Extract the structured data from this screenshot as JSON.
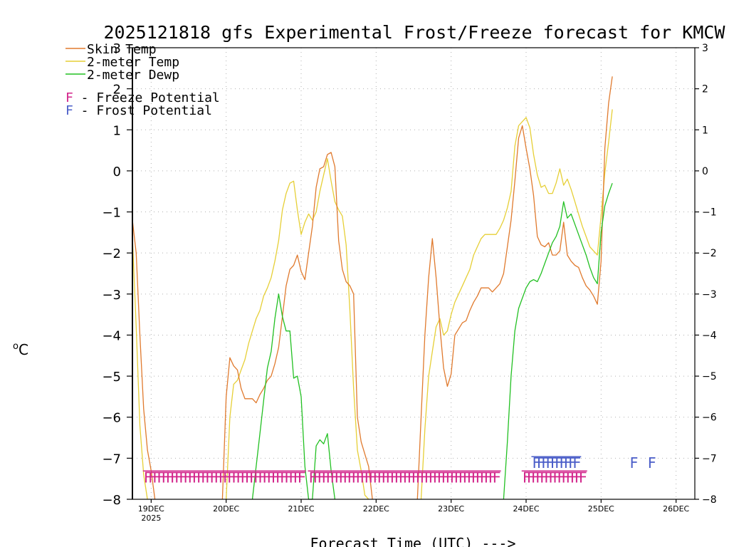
{
  "chart_data": {
    "type": "line",
    "title": "2025121818 gfs Experimental Frost/Freeze forecast for KMCW",
    "xlabel": "Forecast Time (UTC) --->",
    "ylabel": "°C",
    "ylabel_deg": "o",
    "ylabel_unit": "C",
    "ylim": [
      -8,
      3
    ],
    "xlim": [
      -0.25,
      7.25
    ],
    "y_ticks": [
      -8,
      -7,
      -6,
      -5,
      -4,
      -3,
      -2,
      -1,
      0,
      1,
      2,
      3
    ],
    "x_ticks": [
      {
        "pos": 0,
        "label": "19DEC",
        "sublabel": "2025"
      },
      {
        "pos": 1,
        "label": "20DEC"
      },
      {
        "pos": 2,
        "label": "21DEC"
      },
      {
        "pos": 3,
        "label": "22DEC"
      },
      {
        "pos": 4,
        "label": "23DEC"
      },
      {
        "pos": 5,
        "label": "24DEC"
      },
      {
        "pos": 6,
        "label": "25DEC"
      },
      {
        "pos": 7,
        "label": "26DEC"
      }
    ],
    "grid": true,
    "colors": {
      "skin": "#e07a2e",
      "t2m": "#e6cf36",
      "dewp": "#22c022",
      "freeze": "#d2238a",
      "frost": "#4a5dc8"
    },
    "legend": {
      "skin": "Skin Temp",
      "t2m": "2-meter Temp",
      "dewp": "2-meter Dewp",
      "freeze_letter": "F",
      "freeze_text": " - Freeze Potential",
      "frost_letter": "F",
      "frost_text": " - Frost Potential"
    },
    "series": [
      {
        "name": "Skin Temp",
        "key": "skin",
        "points": [
          [
            -0.25,
            -1.2
          ],
          [
            -0.2,
            -2.0
          ],
          [
            -0.15,
            -4.0
          ],
          [
            -0.1,
            -5.8
          ],
          [
            -0.05,
            -6.8
          ],
          [
            0.0,
            -7.3
          ],
          [
            0.05,
            -8.0
          ],
          [
            0.95,
            -8.0
          ],
          [
            1.0,
            -5.5
          ],
          [
            1.05,
            -4.55
          ],
          [
            1.1,
            -4.75
          ],
          [
            1.15,
            -4.85
          ],
          [
            1.2,
            -5.3
          ],
          [
            1.25,
            -5.55
          ],
          [
            1.35,
            -5.55
          ],
          [
            1.4,
            -5.65
          ],
          [
            1.45,
            -5.45
          ],
          [
            1.5,
            -5.3
          ],
          [
            1.55,
            -5.1
          ],
          [
            1.6,
            -5.0
          ],
          [
            1.65,
            -4.7
          ],
          [
            1.7,
            -4.3
          ],
          [
            1.75,
            -3.55
          ],
          [
            1.8,
            -2.8
          ],
          [
            1.85,
            -2.4
          ],
          [
            1.9,
            -2.3
          ],
          [
            1.95,
            -2.05
          ],
          [
            2.0,
            -2.45
          ],
          [
            2.05,
            -2.65
          ],
          [
            2.1,
            -2.0
          ],
          [
            2.15,
            -1.35
          ],
          [
            2.2,
            -0.4
          ],
          [
            2.25,
            0.05
          ],
          [
            2.3,
            0.1
          ],
          [
            2.35,
            0.4
          ],
          [
            2.4,
            0.45
          ],
          [
            2.45,
            0.1
          ],
          [
            2.5,
            -1.7
          ],
          [
            2.55,
            -2.4
          ],
          [
            2.6,
            -2.7
          ],
          [
            2.65,
            -2.8
          ],
          [
            2.7,
            -3.0
          ],
          [
            2.75,
            -6.0
          ],
          [
            2.8,
            -6.6
          ],
          [
            2.85,
            -6.9
          ],
          [
            2.9,
            -7.2
          ],
          [
            2.95,
            -8.0
          ],
          [
            3.55,
            -8.0
          ],
          [
            3.6,
            -6.0
          ],
          [
            3.65,
            -4.0
          ],
          [
            3.7,
            -2.6
          ],
          [
            3.75,
            -1.65
          ],
          [
            3.8,
            -2.6
          ],
          [
            3.85,
            -3.8
          ],
          [
            3.9,
            -4.8
          ],
          [
            3.95,
            -5.25
          ],
          [
            4.0,
            -4.95
          ],
          [
            4.05,
            -4.0
          ],
          [
            4.1,
            -3.85
          ],
          [
            4.15,
            -3.7
          ],
          [
            4.2,
            -3.65
          ],
          [
            4.25,
            -3.4
          ],
          [
            4.3,
            -3.2
          ],
          [
            4.35,
            -3.05
          ],
          [
            4.4,
            -2.85
          ],
          [
            4.45,
            -2.85
          ],
          [
            4.5,
            -2.85
          ],
          [
            4.55,
            -2.95
          ],
          [
            4.6,
            -2.85
          ],
          [
            4.65,
            -2.75
          ],
          [
            4.7,
            -2.5
          ],
          [
            4.75,
            -1.85
          ],
          [
            4.8,
            -1.2
          ],
          [
            4.85,
            -0.25
          ],
          [
            4.9,
            0.8
          ],
          [
            4.95,
            1.1
          ],
          [
            5.0,
            0.55
          ],
          [
            5.05,
            0.05
          ],
          [
            5.1,
            -0.6
          ],
          [
            5.15,
            -1.6
          ],
          [
            5.2,
            -1.8
          ],
          [
            5.25,
            -1.85
          ],
          [
            5.3,
            -1.75
          ],
          [
            5.35,
            -2.05
          ],
          [
            5.4,
            -2.05
          ],
          [
            5.45,
            -1.95
          ],
          [
            5.5,
            -1.25
          ],
          [
            5.55,
            -2.05
          ],
          [
            5.6,
            -2.2
          ],
          [
            5.65,
            -2.3
          ],
          [
            5.7,
            -2.35
          ],
          [
            5.75,
            -2.6
          ],
          [
            5.8,
            -2.8
          ],
          [
            5.85,
            -2.9
          ],
          [
            5.9,
            -3.05
          ],
          [
            5.95,
            -3.25
          ],
          [
            6.0,
            -2.2
          ],
          [
            6.05,
            0.55
          ],
          [
            6.1,
            1.65
          ],
          [
            6.15,
            2.3
          ]
        ]
      },
      {
        "name": "2-meter Temp",
        "key": "t2m",
        "points": [
          [
            -0.25,
            -1.6
          ],
          [
            -0.2,
            -3.8
          ],
          [
            -0.15,
            -6.2
          ],
          [
            -0.1,
            -7.4
          ],
          [
            -0.05,
            -8.0
          ],
          [
            1.0,
            -8.0
          ],
          [
            1.05,
            -6.0
          ],
          [
            1.1,
            -5.2
          ],
          [
            1.15,
            -5.1
          ],
          [
            1.2,
            -4.85
          ],
          [
            1.25,
            -4.6
          ],
          [
            1.3,
            -4.2
          ],
          [
            1.35,
            -3.9
          ],
          [
            1.4,
            -3.6
          ],
          [
            1.45,
            -3.4
          ],
          [
            1.5,
            -3.05
          ],
          [
            1.55,
            -2.85
          ],
          [
            1.6,
            -2.6
          ],
          [
            1.65,
            -2.2
          ],
          [
            1.7,
            -1.7
          ],
          [
            1.75,
            -0.95
          ],
          [
            1.8,
            -0.55
          ],
          [
            1.85,
            -0.3
          ],
          [
            1.9,
            -0.25
          ],
          [
            1.95,
            -0.95
          ],
          [
            2.0,
            -1.55
          ],
          [
            2.05,
            -1.25
          ],
          [
            2.1,
            -1.05
          ],
          [
            2.15,
            -1.2
          ],
          [
            2.2,
            -1.0
          ],
          [
            2.25,
            -0.5
          ],
          [
            2.3,
            -0.1
          ],
          [
            2.35,
            0.3
          ],
          [
            2.4,
            -0.25
          ],
          [
            2.45,
            -0.75
          ],
          [
            2.5,
            -0.95
          ],
          [
            2.55,
            -1.1
          ],
          [
            2.6,
            -1.8
          ],
          [
            2.65,
            -3.4
          ],
          [
            2.7,
            -5.3
          ],
          [
            2.75,
            -6.8
          ],
          [
            2.8,
            -7.3
          ],
          [
            2.85,
            -7.9
          ],
          [
            2.9,
            -8.0
          ],
          [
            3.6,
            -8.0
          ],
          [
            3.65,
            -6.3
          ],
          [
            3.7,
            -5.0
          ],
          [
            3.75,
            -4.4
          ],
          [
            3.8,
            -3.8
          ],
          [
            3.85,
            -3.6
          ],
          [
            3.9,
            -4.0
          ],
          [
            3.95,
            -3.9
          ],
          [
            4.0,
            -3.5
          ],
          [
            4.05,
            -3.2
          ],
          [
            4.1,
            -3.0
          ],
          [
            4.15,
            -2.8
          ],
          [
            4.2,
            -2.6
          ],
          [
            4.25,
            -2.4
          ],
          [
            4.3,
            -2.05
          ],
          [
            4.35,
            -1.85
          ],
          [
            4.4,
            -1.65
          ],
          [
            4.45,
            -1.55
          ],
          [
            4.5,
            -1.55
          ],
          [
            4.55,
            -1.55
          ],
          [
            4.6,
            -1.55
          ],
          [
            4.65,
            -1.4
          ],
          [
            4.7,
            -1.2
          ],
          [
            4.75,
            -0.9
          ],
          [
            4.8,
            -0.5
          ],
          [
            4.85,
            0.6
          ],
          [
            4.9,
            1.1
          ],
          [
            4.95,
            1.2
          ],
          [
            5.0,
            1.3
          ],
          [
            5.05,
            1.05
          ],
          [
            5.1,
            0.4
          ],
          [
            5.15,
            -0.1
          ],
          [
            5.2,
            -0.4
          ],
          [
            5.25,
            -0.35
          ],
          [
            5.3,
            -0.55
          ],
          [
            5.35,
            -0.55
          ],
          [
            5.4,
            -0.3
          ],
          [
            5.45,
            0.05
          ],
          [
            5.5,
            -0.35
          ],
          [
            5.55,
            -0.2
          ],
          [
            5.6,
            -0.45
          ],
          [
            5.65,
            -0.75
          ],
          [
            5.7,
            -1.05
          ],
          [
            5.75,
            -1.35
          ],
          [
            5.8,
            -1.6
          ],
          [
            5.85,
            -1.85
          ],
          [
            5.9,
            -1.95
          ],
          [
            5.95,
            -2.05
          ],
          [
            6.0,
            -1.1
          ],
          [
            6.05,
            -0.05
          ],
          [
            6.1,
            0.7
          ],
          [
            6.15,
            1.5
          ]
        ]
      },
      {
        "name": "2-meter Dewp",
        "key": "dewp",
        "points": [
          [
            1.35,
            -8.0
          ],
          [
            1.4,
            -7.2
          ],
          [
            1.45,
            -6.4
          ],
          [
            1.5,
            -5.6
          ],
          [
            1.55,
            -4.8
          ],
          [
            1.6,
            -4.4
          ],
          [
            1.65,
            -3.6
          ],
          [
            1.7,
            -3.0
          ],
          [
            1.75,
            -3.55
          ],
          [
            1.8,
            -3.9
          ],
          [
            1.85,
            -3.9
          ],
          [
            1.9,
            -5.05
          ],
          [
            1.95,
            -5.0
          ],
          [
            2.0,
            -5.5
          ],
          [
            2.05,
            -7.2
          ],
          [
            2.1,
            -8.0
          ],
          [
            2.15,
            -8.0
          ],
          [
            2.2,
            -6.7
          ],
          [
            2.25,
            -6.55
          ],
          [
            2.3,
            -6.65
          ],
          [
            2.35,
            -6.4
          ],
          [
            2.4,
            -7.3
          ],
          [
            2.45,
            -8.0
          ],
          [
            4.7,
            -8.0
          ],
          [
            4.75,
            -6.6
          ],
          [
            4.8,
            -5.0
          ],
          [
            4.85,
            -3.9
          ],
          [
            4.9,
            -3.35
          ],
          [
            4.95,
            -3.1
          ],
          [
            5.0,
            -2.85
          ],
          [
            5.05,
            -2.7
          ],
          [
            5.1,
            -2.65
          ],
          [
            5.15,
            -2.7
          ],
          [
            5.2,
            -2.5
          ],
          [
            5.25,
            -2.25
          ],
          [
            5.3,
            -2.0
          ],
          [
            5.35,
            -1.75
          ],
          [
            5.4,
            -1.6
          ],
          [
            5.45,
            -1.35
          ],
          [
            5.5,
            -0.75
          ],
          [
            5.55,
            -1.15
          ],
          [
            5.6,
            -1.05
          ],
          [
            5.65,
            -1.3
          ],
          [
            5.7,
            -1.55
          ],
          [
            5.75,
            -1.8
          ],
          [
            5.8,
            -2.05
          ],
          [
            5.85,
            -2.35
          ],
          [
            5.9,
            -2.6
          ],
          [
            5.95,
            -2.75
          ],
          [
            6.0,
            -1.5
          ],
          [
            6.05,
            -0.85
          ],
          [
            6.1,
            -0.55
          ],
          [
            6.15,
            -0.3
          ]
        ]
      }
    ],
    "breaks": [
      [
        0.05,
        0.95
      ],
      [
        2.95,
        3.55
      ],
      [
        0.0,
        1.0
      ],
      [
        2.9,
        3.6
      ],
      [
        2.1,
        2.15
      ],
      [
        2.45,
        4.7
      ]
    ],
    "markers": {
      "freeze_y": -7.45,
      "frost_y": -7.1,
      "freeze_runs": [
        {
          "x0": -0.1,
          "x1": 1.95,
          "count": 36
        },
        {
          "x0": 2.1,
          "x1": 4.55,
          "count": 44
        },
        {
          "x0": 4.95,
          "x1": 5.7,
          "count": 14
        }
      ],
      "frost_runs": [
        {
          "x0": 5.08,
          "x1": 5.62,
          "count": 10
        },
        {
          "x0": 6.38,
          "x1": 6.62,
          "count": 2
        }
      ]
    }
  }
}
